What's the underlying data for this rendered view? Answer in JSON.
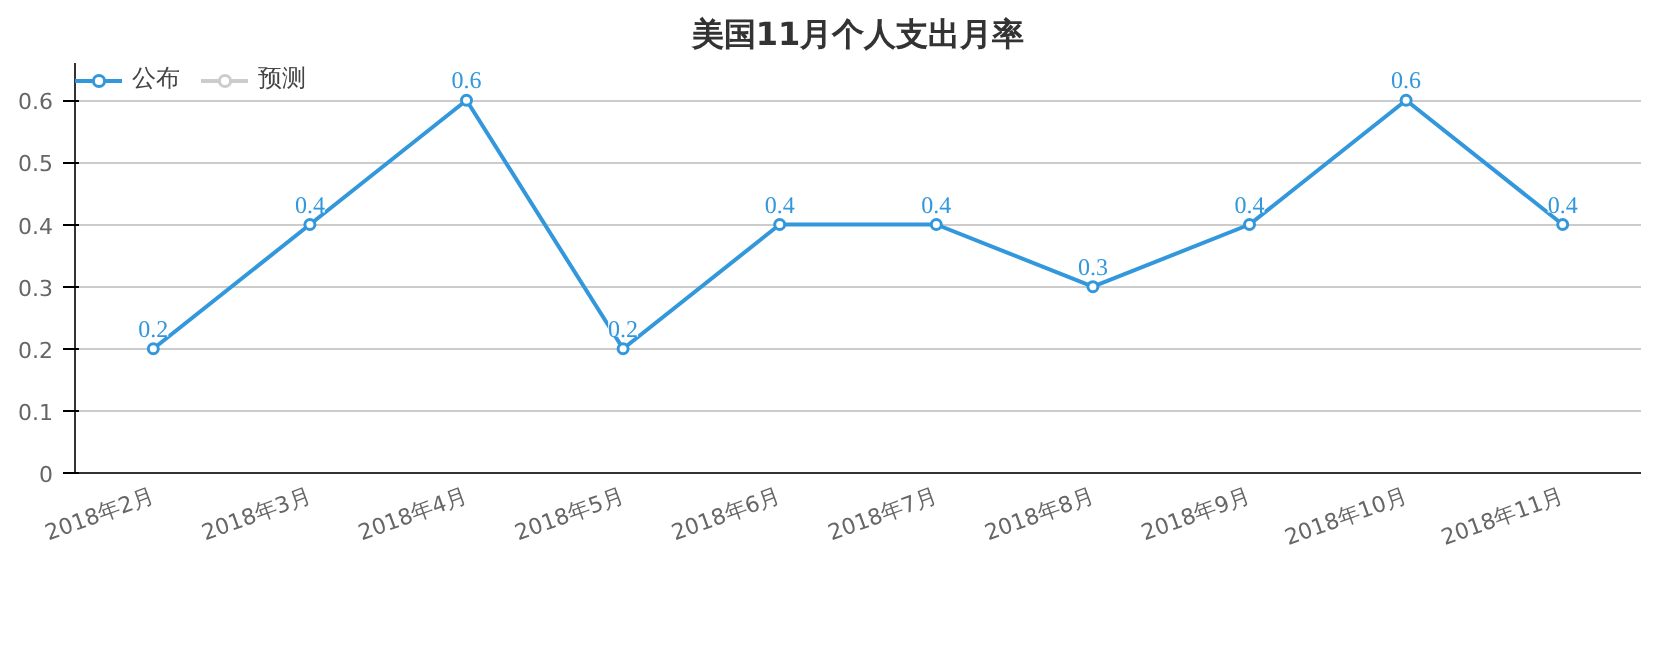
{
  "chart_data": {
    "type": "line",
    "title": "美国11月个人支出月率",
    "categories": [
      "2018年2月",
      "2018年3月",
      "2018年4月",
      "2018年5月",
      "2018年6月",
      "2018年7月",
      "2018年8月",
      "2018年9月",
      "2018年10月",
      "2018年11月"
    ],
    "series": [
      {
        "name": "公布",
        "color": "#3398db",
        "values": [
          0.2,
          0.4,
          0.6,
          0.2,
          0.4,
          0.4,
          0.3,
          0.4,
          0.6,
          0.4
        ]
      },
      {
        "name": "预测",
        "color": "#cccccc",
        "values": [
          null,
          null,
          null,
          null,
          null,
          null,
          null,
          null,
          null,
          null
        ]
      }
    ],
    "ylim": [
      0,
      0.66
    ],
    "yticks": [
      0,
      0.1,
      0.2,
      0.3,
      0.4,
      0.5,
      0.6
    ],
    "grid": "y",
    "legend": "top left",
    "marker": "circle",
    "data_labels": true
  }
}
